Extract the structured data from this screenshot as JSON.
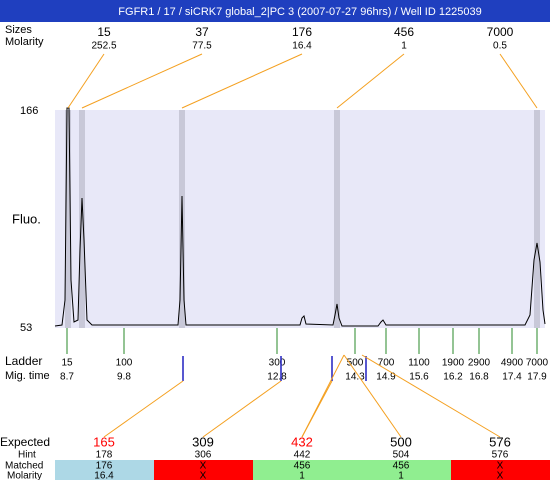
{
  "title": "FGFR1 / 17 / siCRK7 global_2|PC 3 (2007-07-27 96hrs) / Well ID 1225039",
  "peaks": {
    "labels": [
      "Sizes",
      "Molarity"
    ],
    "items": [
      {
        "size": "15",
        "molarity": "252.5"
      },
      {
        "size": "37",
        "molarity": "77.5"
      },
      {
        "size": "176",
        "molarity": "16.4"
      },
      {
        "size": "456",
        "molarity": "1"
      },
      {
        "size": "7000",
        "molarity": "0.5"
      }
    ]
  },
  "axis": {
    "label": "Fluo.",
    "max": "166",
    "min": "53"
  },
  "ladder": {
    "labels": [
      "Ladder",
      "Mig. time"
    ],
    "items": [
      {
        "size": "15",
        "time": "8.7"
      },
      {
        "size": "100",
        "time": "9.8"
      },
      {
        "size": "300",
        "time": "12.8"
      },
      {
        "size": "500",
        "time": "14.3"
      },
      {
        "size": "700",
        "time": "14.9"
      },
      {
        "size": "1100",
        "time": "15.6"
      },
      {
        "size": "1900",
        "time": "16.2"
      },
      {
        "size": "2900",
        "time": "16.8"
      },
      {
        "size": "4900",
        "time": "17.4"
      },
      {
        "size": "7000",
        "time": "17.9"
      }
    ]
  },
  "expected": {
    "labels": [
      "Expected",
      "Hint",
      "Matched",
      "Molarity"
    ],
    "items": [
      {
        "expected": "165",
        "expected_color": "#ff0000",
        "hint": "178",
        "matched": "176",
        "molarity": "16.4",
        "color": "#add8e6"
      },
      {
        "expected": "309",
        "expected_color": "#000000",
        "hint": "306",
        "matched": "X",
        "molarity": "X",
        "color": "#ff0000"
      },
      {
        "expected": "432",
        "expected_color": "#ff0000",
        "hint": "442",
        "matched": "456",
        "molarity": "1",
        "color": "#90ee90"
      },
      {
        "expected": "500",
        "expected_color": "#000000",
        "hint": "504",
        "matched": "456",
        "molarity": "1",
        "color": "#90ee90"
      },
      {
        "expected": "576",
        "expected_color": "#000000",
        "hint": "576",
        "matched": "X",
        "molarity": "X",
        "color": "#ff0000"
      }
    ]
  }
}
